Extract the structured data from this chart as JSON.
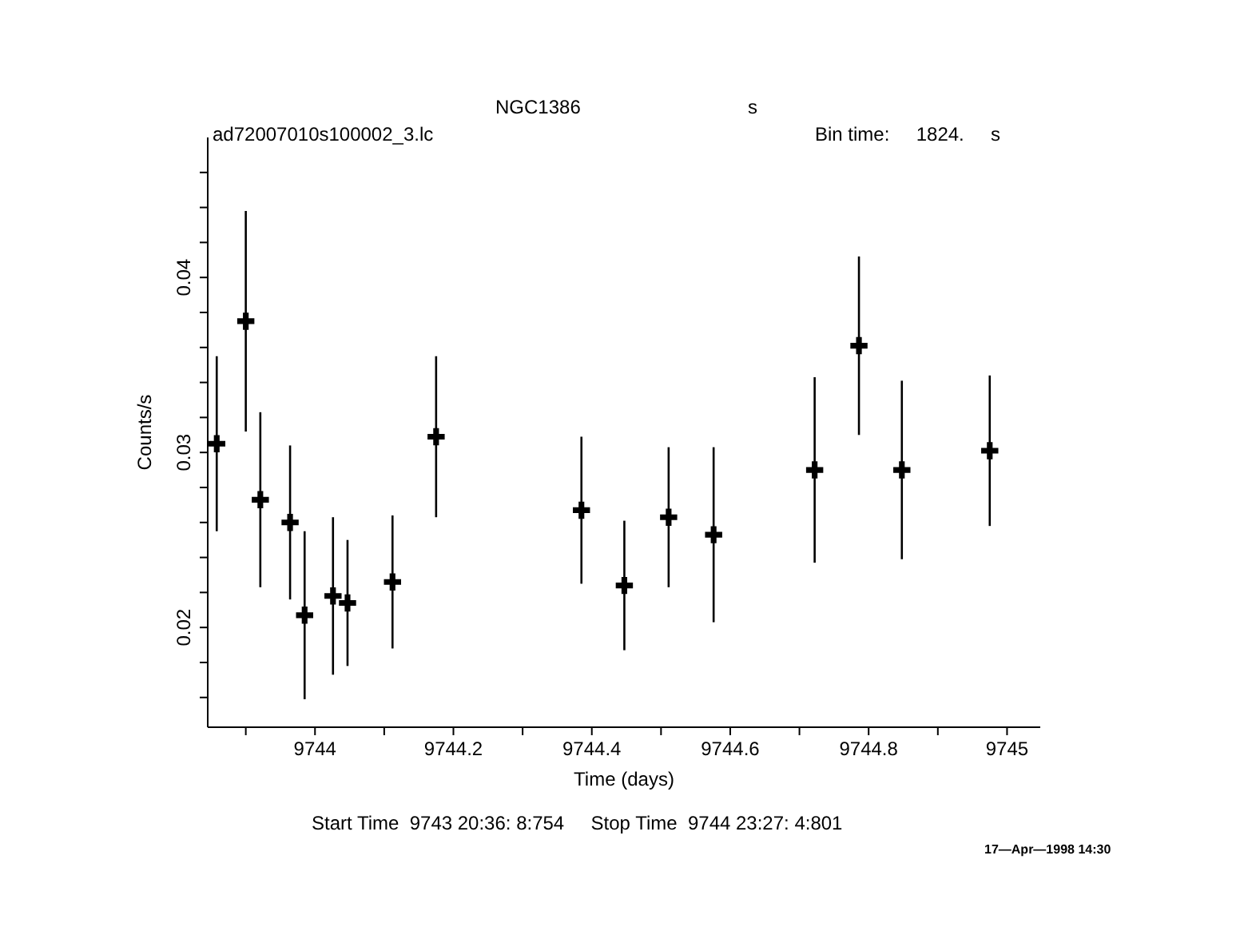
{
  "chart_data": {
    "type": "scatter",
    "title": "NGC1386",
    "xlabel": "Time (days)",
    "ylabel": "Counts/s",
    "annotations": [
      "s",
      "ad72007010s100002_3.lc",
      "Bin time:     1824.     s",
      "Start Time  9743 20:36: 8:754     Stop Time  9744 23:27: 4:801",
      "17—Apr—1998 14:30"
    ],
    "x": [
      9743.858,
      9743.9,
      9743.921,
      9743.964,
      9743.985,
      9744.026,
      9744.047,
      9744.112,
      9744.175,
      9744.385,
      9744.447,
      9744.511,
      9744.576,
      9744.722,
      9744.786,
      9744.848,
      9744.975
    ],
    "series": [
      {
        "color": "#000000",
        "values": [
          0.0305,
          0.0375,
          0.0273,
          0.026,
          0.0207,
          0.0218,
          0.0214,
          0.0226,
          0.0309,
          0.0267,
          0.0224,
          0.0263,
          0.0253,
          0.029,
          0.0361,
          0.029,
          0.0301
        ],
        "errors": [
          0.005,
          0.0063,
          0.005,
          0.0044,
          0.0048,
          0.0045,
          0.0036,
          0.0038,
          0.0046,
          0.0042,
          0.0037,
          0.004,
          0.005,
          0.0053,
          0.0051,
          0.0051,
          0.0043
        ],
        "xerrors": [
          0.0106,
          0.0106,
          0.0106,
          0.0106,
          0.0106,
          0.0106,
          0.0106,
          0.0106,
          0.0106,
          0.0106,
          0.0106,
          0.0106,
          0.0106,
          0.0106,
          0.0106,
          0.0106,
          0.0106
        ]
      }
    ],
    "xlim": [
      9743.845,
      9745.048
    ],
    "xticks": [
      {
        "value": 9743.9,
        "label": null
      },
      9744,
      {
        "value": 9744.1,
        "label": null
      },
      9744.2,
      {
        "value": 9744.3,
        "label": null
      },
      9744.4,
      {
        "value": 9744.5,
        "label": null
      },
      9744.6,
      {
        "value": 9744.7,
        "label": null
      },
      9744.8,
      {
        "value": 9744.9,
        "label": null
      },
      9745
    ],
    "ylim": [
      0.0143,
      0.048
    ],
    "yticks": [
      {
        "value": 0.016,
        "label": null
      },
      {
        "value": 0.018,
        "label": null
      },
      0.02,
      {
        "value": 0.022,
        "label": null
      },
      {
        "value": 0.024,
        "label": null
      },
      {
        "value": 0.026,
        "label": null
      },
      {
        "value": 0.028,
        "label": null
      },
      0.03,
      {
        "value": 0.032,
        "label": null
      },
      {
        "value": 0.034,
        "label": null
      },
      {
        "value": 0.036,
        "label": null
      },
      {
        "value": 0.038,
        "label": null
      },
      0.04,
      {
        "value": 0.042,
        "label": null
      },
      {
        "value": 0.044,
        "label": null
      },
      {
        "value": 0.046,
        "label": null
      }
    ],
    "marker": "cross"
  }
}
